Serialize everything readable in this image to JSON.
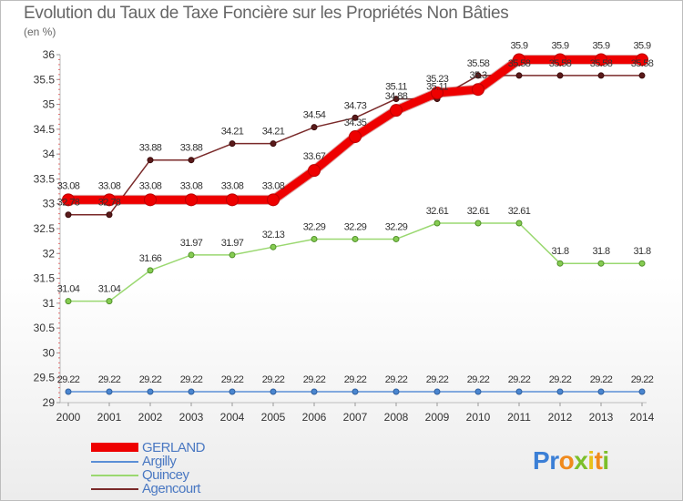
{
  "title": "Evolution du Taux de Taxe Foncière sur les Propriétés Non Bâties",
  "unit": "(en %)",
  "logo": "Proxiti",
  "chart_data": {
    "type": "line",
    "x": [
      "2000",
      "2001",
      "2002",
      "2003",
      "2004",
      "2005",
      "2006",
      "2007",
      "2008",
      "2009",
      "2010",
      "2011",
      "2012",
      "2013",
      "2014"
    ],
    "ylim": [
      29,
      36
    ],
    "yticks": [
      "29",
      "29.5",
      "30",
      "30.5",
      "31",
      "31.5",
      "32",
      "32.5",
      "33",
      "33.5",
      "34",
      "34.5",
      "35",
      "35.5",
      "36"
    ],
    "grid": false,
    "legend_position": "bottom-left",
    "series": [
      {
        "name": "GERLAND",
        "color": "#ee0000",
        "values": [
          33.08,
          33.08,
          33.08,
          33.08,
          33.08,
          33.08,
          33.67,
          34.35,
          34.88,
          35.23,
          35.3,
          35.9,
          35.9,
          35.9,
          35.9
        ],
        "labels": [
          "33.08",
          "33.08",
          "33.08",
          "33.08",
          "33.08",
          "33.08",
          "33.67",
          "34.35",
          "34.88",
          "35.23",
          "35.3",
          "35.9",
          "35.9",
          "35.9",
          "35.9"
        ]
      },
      {
        "name": "Argilly",
        "color": "#5b8fd6",
        "values": [
          29.22,
          29.22,
          29.22,
          29.22,
          29.22,
          29.22,
          29.22,
          29.22,
          29.22,
          29.22,
          29.22,
          29.22,
          29.22,
          29.22,
          29.22
        ],
        "labels": [
          "29.22",
          "29.22",
          "29.22",
          "29.22",
          "29.22",
          "29.22",
          "29.22",
          "29.22",
          "29.22",
          "29.22",
          "29.22",
          "29.22",
          "29.22",
          "29.22",
          "29.22"
        ]
      },
      {
        "name": "Quincey",
        "color": "#9ad870",
        "values": [
          31.04,
          31.04,
          31.66,
          31.97,
          31.97,
          32.13,
          32.29,
          32.29,
          32.29,
          32.61,
          32.61,
          32.61,
          31.8,
          31.8,
          31.8
        ],
        "labels": [
          "31.04",
          "31.04",
          "31.66",
          "31.97",
          "31.97",
          "32.13",
          "32.29",
          "32.29",
          "32.29",
          "32.61",
          "32.61",
          "32.61",
          "31.8",
          "31.8",
          "31.8"
        ]
      },
      {
        "name": "Agencourt",
        "color": "#7a2a2a",
        "values": [
          32.78,
          32.78,
          33.88,
          33.88,
          34.21,
          34.21,
          34.54,
          34.73,
          35.11,
          35.11,
          35.58,
          35.58,
          35.58,
          35.58,
          35.58
        ],
        "labels": [
          "32.78",
          "32.78",
          "33.88",
          "33.88",
          "34.21",
          "34.21",
          "34.54",
          "34.73",
          "35.11",
          "35.11",
          "35.58",
          "35.58",
          "35.58",
          "35.58",
          "35.58"
        ]
      }
    ]
  }
}
